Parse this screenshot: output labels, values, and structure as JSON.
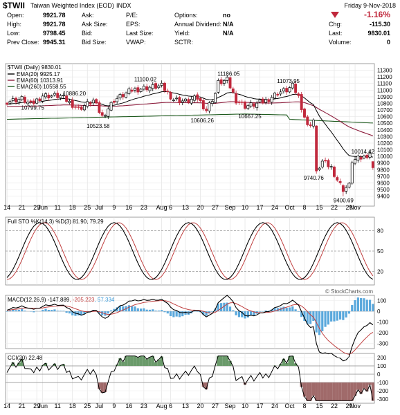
{
  "header": {
    "symbol": "$TWII",
    "name": "Taiwan Weighted Index (EOD)",
    "exchange": "INDX",
    "date": "Friday  9-Nov-2018",
    "change_pct": "-1.16%",
    "chg_label": "Chg:",
    "chg_value": "-115.30",
    "last_label": "Last:",
    "last_value": "9830.01",
    "volume_label": "Volume:",
    "volume_value": "0",
    "col1": [
      {
        "label": "Open:",
        "value": "9921.78"
      },
      {
        "label": "High:",
        "value": "9921.78"
      },
      {
        "label": "Low:",
        "value": "9798.45"
      },
      {
        "label": "Prev Close:",
        "value": "9945.31"
      }
    ],
    "col2": [
      {
        "label": "Ask:",
        "value": ""
      },
      {
        "label": "Ask Size:",
        "value": ""
      },
      {
        "label": "Bid:",
        "value": ""
      },
      {
        "label": "Bid Size:",
        "value": ""
      }
    ],
    "col3": [
      {
        "label": "P/E:",
        "value": ""
      },
      {
        "label": "EPS:",
        "value": ""
      },
      {
        "label": "Last Size:",
        "value": ""
      },
      {
        "label": "VWAP:",
        "value": ""
      }
    ],
    "col4": [
      {
        "label": "Options:",
        "value": "no"
      },
      {
        "label": "Annual Dividend:",
        "value": "N/A"
      },
      {
        "label": "Yield:",
        "value": "N/A"
      },
      {
        "label": "SCTR:",
        "value": ""
      }
    ]
  },
  "chart_data": [
    {
      "type": "candlestick",
      "title": "$TWII (Daily) 9830.01",
      "legend": [
        {
          "name": "EMA(20) 9925.17",
          "color": "#000000"
        },
        {
          "name": "EMA(60) 10313.91",
          "color": "#8b1a3a"
        },
        {
          "name": "EMA(260) 10558.55",
          "color": "#1e5a1e"
        }
      ],
      "ylim": [
        9250,
        11400
      ],
      "yticks": [
        9400,
        9500,
        9600,
        9700,
        9800,
        9900,
        10000,
        10100,
        10200,
        10300,
        10400,
        10500,
        10600,
        10700,
        10800,
        10900,
        11000,
        11100,
        11200,
        11300
      ],
      "annotations": [
        {
          "text": "10886.20",
          "value": 10886.2
        },
        {
          "text": "10799.75",
          "value": 10799.75
        },
        {
          "text": "11100.02",
          "value": 11100.02
        },
        {
          "text": "10523.58",
          "value": 10523.58
        },
        {
          "text": "11186.05",
          "value": 11186.05
        },
        {
          "text": "10606.26",
          "value": 10606.26
        },
        {
          "text": "11073.95",
          "value": 11073.95
        },
        {
          "text": "10667.25",
          "value": 10667.25
        },
        {
          "text": "10014.42",
          "value": 10014.42
        },
        {
          "text": "9740.76",
          "value": 9740.76
        },
        {
          "text": "9400.69",
          "value": 9400.69
        }
      ]
    },
    {
      "type": "line",
      "title": "Full STO %K(14,3) %D(3) 81.90, 79.29",
      "ylim": [
        0,
        100
      ],
      "levels": [
        20,
        50,
        80
      ],
      "series": [
        {
          "name": "%K",
          "color": "#000000"
        },
        {
          "name": "%D",
          "color": "#c04040"
        }
      ]
    },
    {
      "type": "line",
      "title": "MACD(12,26,9) -147.889, -205.223, 57.334",
      "legend": [
        {
          "name": "MACD(12,26,9) -147.889",
          "color": "#000000"
        },
        {
          "name": "-205.223",
          "color": "#c04040"
        },
        {
          "name": "57.334",
          "color": "#3a9ad9"
        }
      ],
      "ylim": [
        -350,
        150
      ],
      "yticks": [
        -300,
        -200,
        -100,
        0,
        100
      ]
    },
    {
      "type": "line",
      "title": "CCI(20) 22.48",
      "ylim": [
        -350,
        250
      ],
      "levels": [
        -100,
        0,
        100
      ],
      "yticks": [
        -300,
        -200,
        -100,
        0,
        100,
        200
      ]
    }
  ],
  "x_axis_labels": [
    {
      "text": "14",
      "day": 0
    },
    {
      "text": "21",
      "day": 5
    },
    {
      "text": "29",
      "day": 10
    },
    {
      "text": "Jun",
      "day": 12
    },
    {
      "text": "11",
      "day": 17
    },
    {
      "text": "18",
      "day": 22
    },
    {
      "text": "25",
      "day": 27
    },
    {
      "text": "Jul",
      "day": 31
    },
    {
      "text": "9",
      "day": 36
    },
    {
      "text": "16",
      "day": 41
    },
    {
      "text": "23",
      "day": 46
    },
    {
      "text": "Aug",
      "day": 52
    },
    {
      "text": "6",
      "day": 55
    },
    {
      "text": "13",
      "day": 60
    },
    {
      "text": "20",
      "day": 65
    },
    {
      "text": "27",
      "day": 70
    },
    {
      "text": "Sep",
      "day": 75
    },
    {
      "text": "10",
      "day": 80
    },
    {
      "text": "17",
      "day": 85
    },
    {
      "text": "24",
      "day": 90
    },
    {
      "text": "Oct",
      "day": 95
    },
    {
      "text": "8",
      "day": 100
    },
    {
      "text": "15",
      "day": 105
    },
    {
      "text": "22",
      "day": 110
    },
    {
      "text": "29",
      "day": 115
    },
    {
      "text": "Nov",
      "day": 117
    }
  ],
  "watermark": "© StockCharts.com"
}
